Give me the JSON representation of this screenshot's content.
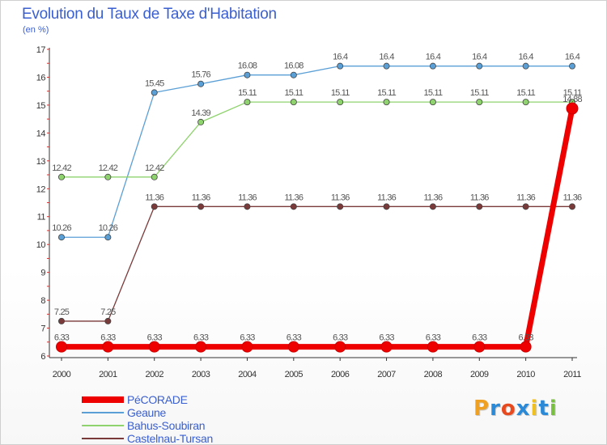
{
  "header": {
    "title": "Evolution du Taux de Taxe d'Habitation",
    "subtitle": "(en %)"
  },
  "logo": {
    "text": "Proxiti",
    "letter_colors": [
      "#f0a020",
      "#2a8ad8",
      "#e84a20",
      "#2a8ad8",
      "#f0c020",
      "#2a8ad8",
      "#7ac040"
    ]
  },
  "chart_data": {
    "type": "line",
    "x": [
      2000,
      2001,
      2002,
      2003,
      2004,
      2005,
      2006,
      2007,
      2008,
      2009,
      2010,
      2011
    ],
    "ylim": [
      6,
      17
    ],
    "yticks": [
      6,
      7,
      8,
      9,
      10,
      11,
      12,
      13,
      14,
      15,
      16,
      17
    ],
    "grid": false,
    "legend_position": "bottom-left",
    "series": [
      {
        "name": "PéCORADE",
        "color": "#ee0000",
        "values": [
          6.33,
          6.33,
          6.33,
          6.33,
          6.33,
          6.33,
          6.33,
          6.33,
          6.33,
          6.33,
          6.33,
          14.88
        ],
        "labels": [
          "6.33",
          "6.33",
          "6.33",
          "6.33",
          "6.33",
          "6.33",
          "6.33",
          "6.33",
          "6.33",
          "6.33",
          "6.33",
          "14.88"
        ]
      },
      {
        "name": "Geaune",
        "color": "#5a9fd6",
        "values": [
          10.26,
          10.26,
          15.45,
          15.76,
          16.08,
          16.08,
          16.4,
          16.4,
          16.4,
          16.4,
          16.4,
          16.4
        ],
        "labels": [
          "10.26",
          "10.26",
          "15.45",
          "15.76",
          "16.08",
          "16.08",
          "16.4",
          "16.4",
          "16.4",
          "16.4",
          "16.4",
          "16.4"
        ]
      },
      {
        "name": "Bahus-Soubiran",
        "color": "#8fd36e",
        "values": [
          12.42,
          12.42,
          12.42,
          14.39,
          15.11,
          15.11,
          15.11,
          15.11,
          15.11,
          15.11,
          15.11,
          15.11
        ],
        "labels": [
          "12.42",
          "12.42",
          "12.42",
          "14.39",
          "15.11",
          "15.11",
          "15.11",
          "15.11",
          "15.11",
          "15.11",
          "15.11",
          "15.11"
        ]
      },
      {
        "name": "Castelnau-Tursan",
        "color": "#7a3a3a",
        "values": [
          7.25,
          7.25,
          11.36,
          11.36,
          11.36,
          11.36,
          11.36,
          11.36,
          11.36,
          11.36,
          11.36,
          11.36
        ],
        "labels": [
          "7.25",
          "7.25",
          "11.36",
          "11.36",
          "11.36",
          "11.36",
          "11.36",
          "11.36",
          "11.36",
          "11.36",
          "11.36",
          "11.36"
        ]
      }
    ]
  }
}
